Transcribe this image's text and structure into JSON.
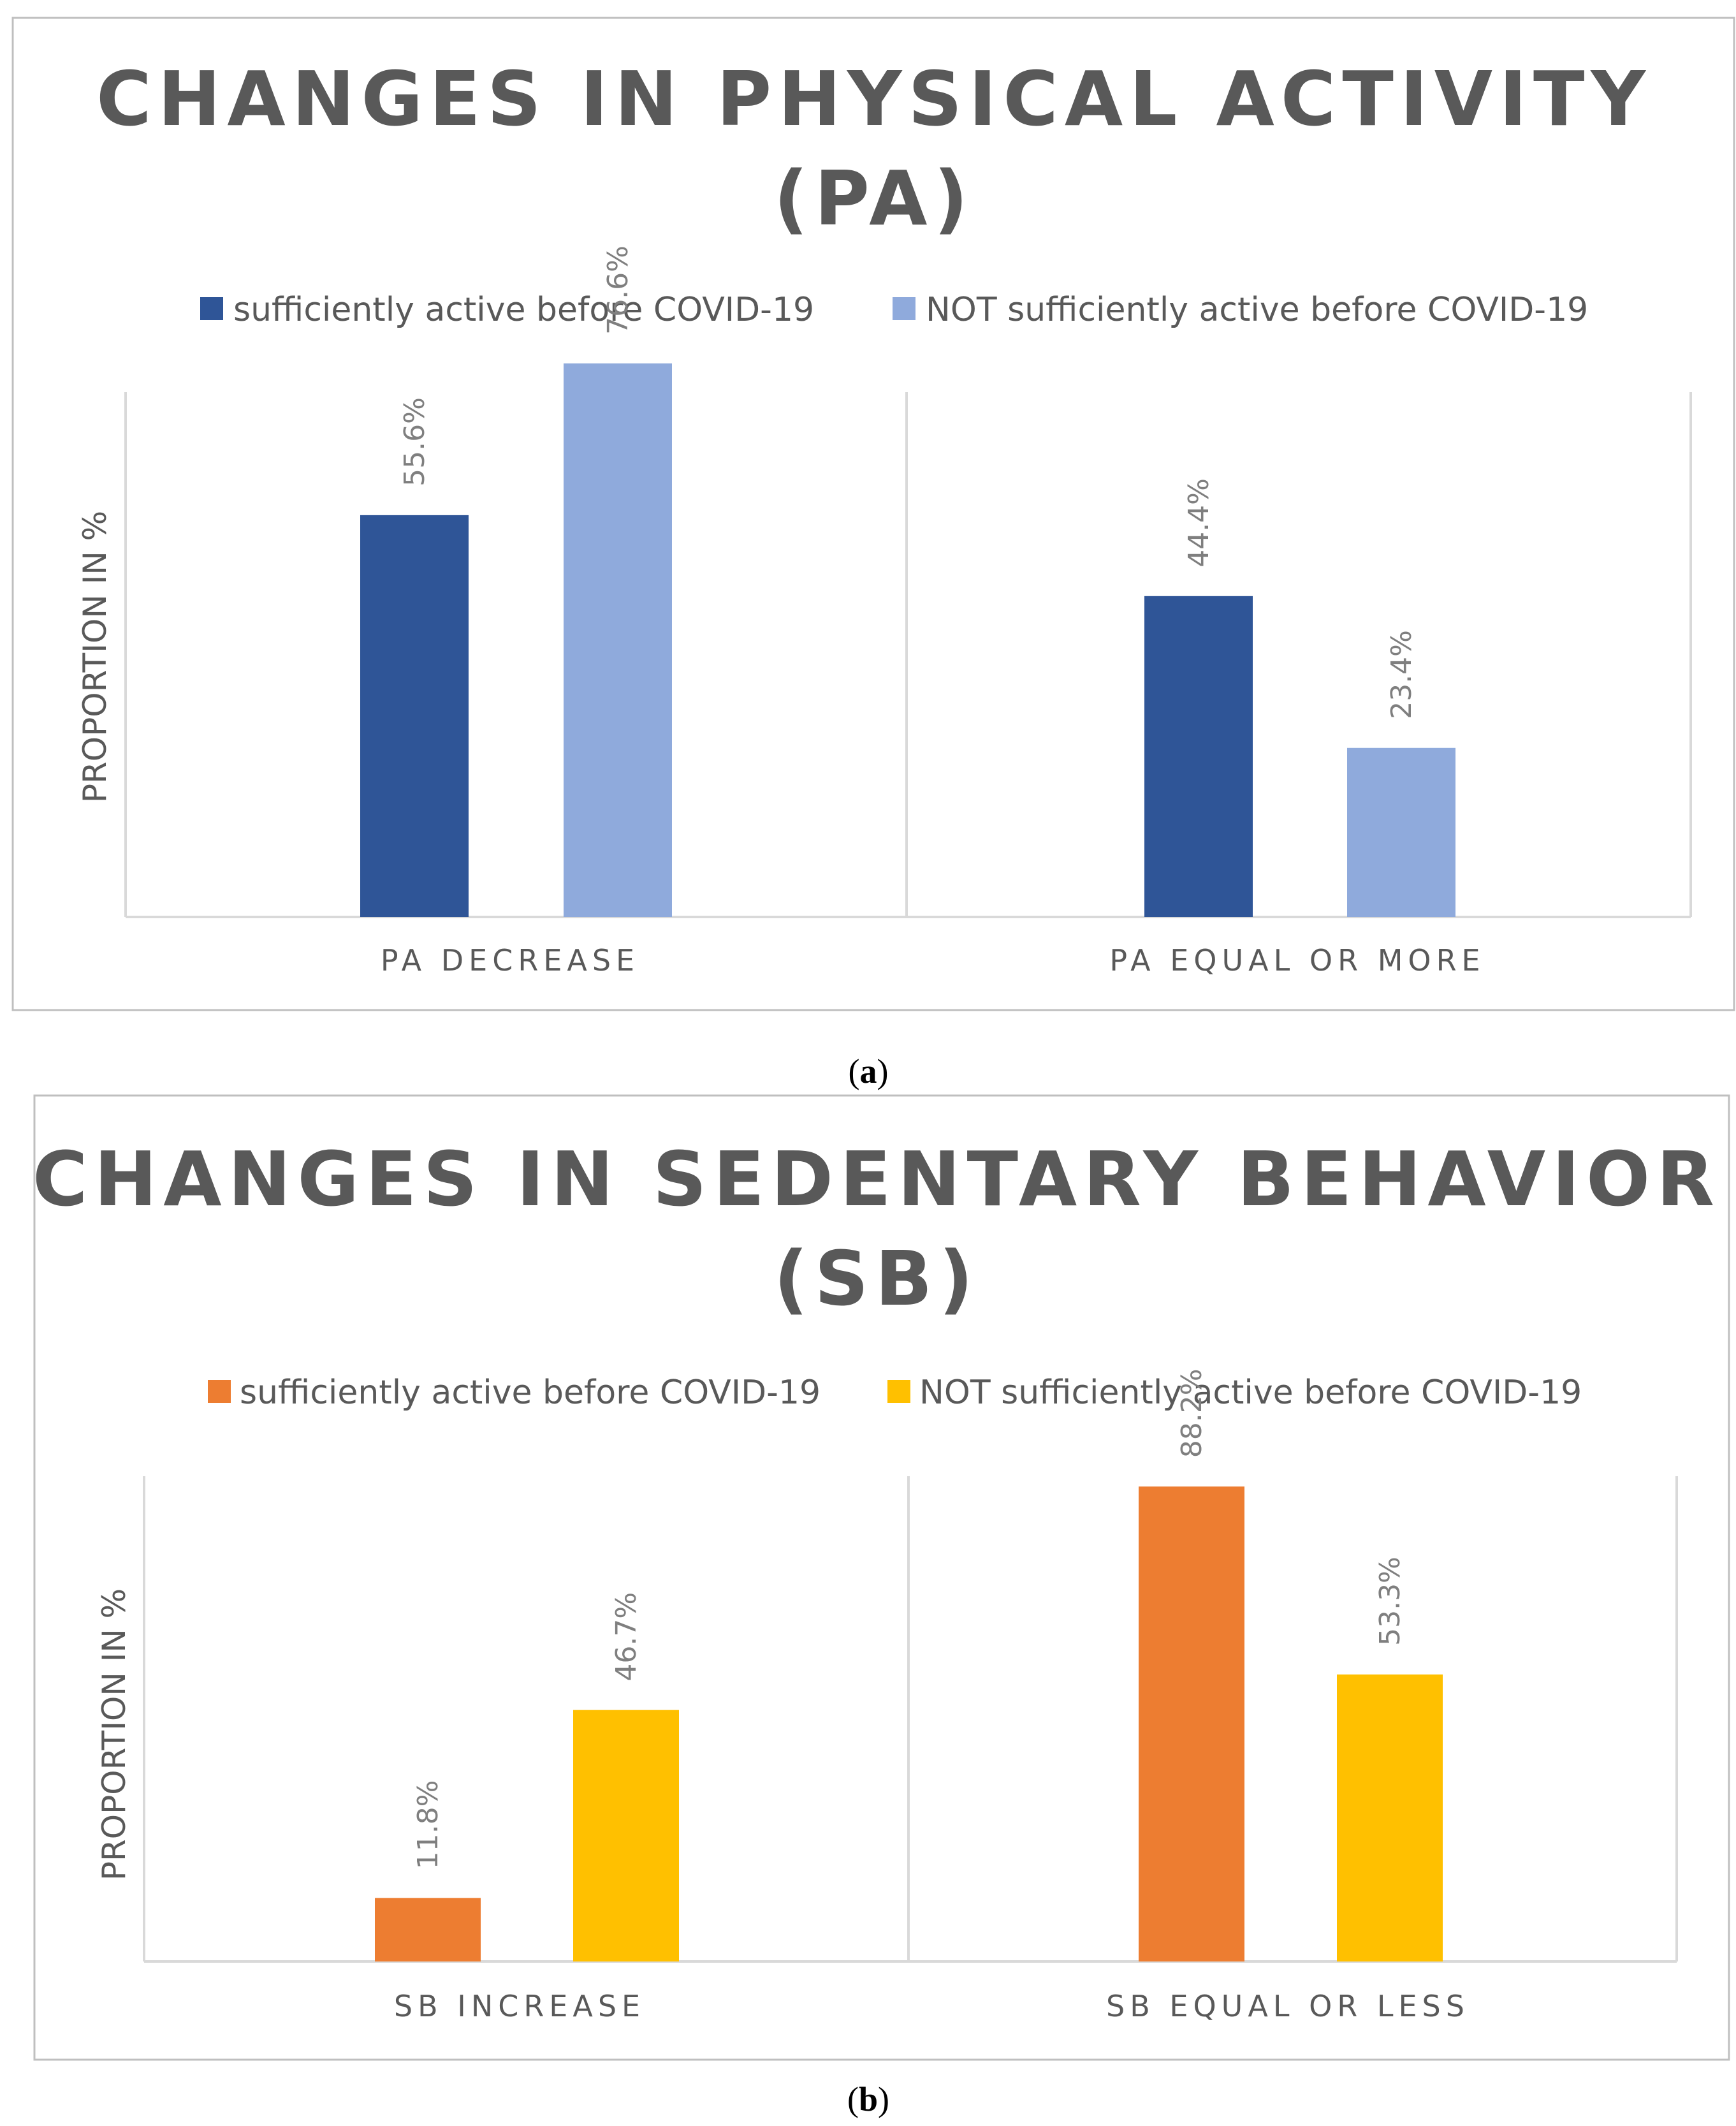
{
  "chart_data": [
    {
      "type": "bar",
      "panel_label": "a",
      "title_lines": [
        "CHANGES IN PHYSICAL ACTIVITY",
        "(PA)"
      ],
      "ylabel": "PROPORTION IN %",
      "categories": [
        "PA DECREASE",
        "PA EQUAL OR MORE"
      ],
      "series": [
        {
          "name": "sufficiently active before COVID-19",
          "color": "#2f5597",
          "values": [
            55.6,
            44.4
          ]
        },
        {
          "name": "NOT sufficiently active before COVID-19",
          "color": "#8faadc",
          "values": [
            76.6,
            23.4
          ]
        }
      ],
      "unit_suffix": "%",
      "ylim": [
        0,
        90
      ],
      "legend_position": "top"
    },
    {
      "type": "bar",
      "panel_label": "b",
      "title_lines": [
        "CHANGES IN SEDENTARY BEHAVIOR",
        "(SB)"
      ],
      "ylabel": "PROPORTION IN %",
      "categories": [
        "SB INCREASE",
        "SB EQUAL OR LESS"
      ],
      "series": [
        {
          "name": "sufficiently active before COVID-19",
          "color": "#ed7d31",
          "values": [
            11.8,
            88.2
          ]
        },
        {
          "name": "NOT sufficiently active before COVID-19",
          "color": "#ffc000",
          "values": [
            46.7,
            53.3
          ]
        }
      ],
      "unit_suffix": "%",
      "ylim": [
        0,
        90
      ],
      "legend_position": "top"
    }
  ]
}
